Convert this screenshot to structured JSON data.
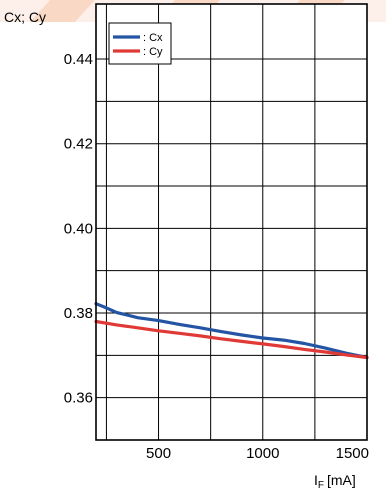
{
  "chart_data": {
    "type": "line",
    "ylabel": "Cx; Cy",
    "xlabel_main": "I",
    "xlabel_sub": "F",
    "xlabel_unit": "[mA]",
    "xlim": [
      200,
      1500
    ],
    "ylim": [
      0.35,
      0.453
    ],
    "x_ticks": [
      500,
      1000,
      1500
    ],
    "x_tick_labels": [
      "500",
      "1000",
      "1500"
    ],
    "x_grid": [
      250,
      500,
      750,
      1000,
      1250,
      1500
    ],
    "y_ticks": [
      0.36,
      0.38,
      0.4,
      0.42,
      0.44
    ],
    "y_tick_labels": [
      "0.36",
      "0.38",
      "0.40",
      "0.42",
      "0.44"
    ],
    "y_grid": [
      0.35,
      0.36,
      0.37,
      0.38,
      0.39,
      0.4,
      0.41,
      0.42,
      0.43,
      0.44
    ],
    "grid": true,
    "legend_position": "top-left",
    "series": [
      {
        "name": ": Cx",
        "color": "#2455a4",
        "x": [
          200,
          250,
          300,
          350,
          400,
          500,
          600,
          700,
          800,
          900,
          1000,
          1100,
          1200,
          1300,
          1400,
          1500
        ],
        "y": [
          0.3822,
          0.3812,
          0.3801,
          0.3795,
          0.3789,
          0.3782,
          0.3773,
          0.3765,
          0.3756,
          0.3748,
          0.3741,
          0.3736,
          0.3728,
          0.3717,
          0.3705,
          0.3695
        ]
      },
      {
        "name": ": Cy",
        "color": "#e03a37",
        "x": [
          200,
          300,
          400,
          500,
          600,
          700,
          800,
          900,
          1000,
          1100,
          1200,
          1300,
          1400,
          1500
        ],
        "y": [
          0.378,
          0.3772,
          0.3765,
          0.3758,
          0.3752,
          0.3746,
          0.3739,
          0.3733,
          0.3727,
          0.3721,
          0.3714,
          0.3708,
          0.3701,
          0.3695
        ]
      }
    ]
  }
}
